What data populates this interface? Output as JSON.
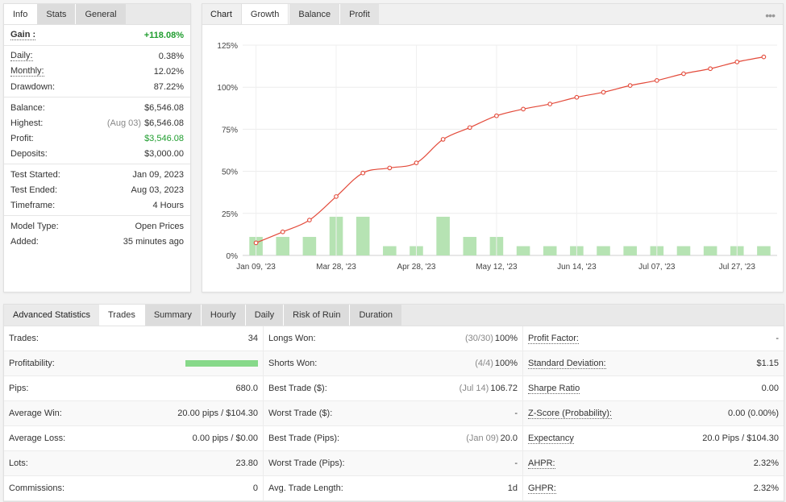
{
  "stats_tabs": [
    "Info",
    "Stats",
    "General"
  ],
  "stats": {
    "gain": {
      "label": "Gain :",
      "value": "+118.08%"
    },
    "daily": {
      "label": "Daily:",
      "value": "0.38%"
    },
    "monthly": {
      "label": "Monthly:",
      "value": "12.02%"
    },
    "drawdown": {
      "label": "Drawdown:",
      "value": "87.22%"
    },
    "balance": {
      "label": "Balance:",
      "value": "$6,546.08"
    },
    "highest": {
      "label": "Highest:",
      "sub": "(Aug 03)",
      "value": "$6,546.08"
    },
    "profit": {
      "label": "Profit:",
      "value": "$3,546.08"
    },
    "deposits": {
      "label": "Deposits:",
      "value": "$3,000.00"
    },
    "test_started": {
      "label": "Test Started:",
      "value": "Jan 09, 2023"
    },
    "test_ended": {
      "label": "Test Ended:",
      "value": "Aug 03, 2023"
    },
    "timeframe": {
      "label": "Timeframe:",
      "value": "4 Hours"
    },
    "model_type": {
      "label": "Model Type:",
      "value": "Open Prices"
    },
    "added": {
      "label": "Added:",
      "value": "35 minutes ago"
    }
  },
  "chart_tabs": [
    "Chart",
    "Growth",
    "Balance",
    "Profit"
  ],
  "menu_icon": "more-dots-icon",
  "colors": {
    "line": "#e34a3a",
    "bar": "#b6e3b3",
    "green": "#1f9d2e",
    "progress": "#87d98a"
  },
  "chart_data": {
    "type": "line+bar",
    "yticks": [
      "125%",
      "100%",
      "75%",
      "50%",
      "25%",
      "0%"
    ],
    "ylim": [
      0,
      125
    ],
    "xticks": [
      "Jan 09, '23",
      "Mar 28, '23",
      "Apr 28, '23",
      "May 12, '23",
      "Jun 14, '23",
      "Jul 07, '23",
      "Jul 27, '23"
    ],
    "line_values": [
      7.5,
      14,
      21,
      35,
      49,
      52,
      55,
      69,
      76,
      83,
      87,
      90,
      94,
      97,
      101,
      104,
      108,
      111,
      115,
      118
    ],
    "bar_values": [
      11,
      11,
      11,
      23,
      23,
      5.5,
      5.5,
      23,
      11,
      11,
      5.5,
      5.5,
      5.5,
      5.5,
      5.5,
      5.5,
      5.5,
      5.5,
      5.5,
      5.5
    ]
  },
  "adv_tabs": [
    "Advanced Statistics",
    "Trades",
    "Summary",
    "Hourly",
    "Daily",
    "Risk of Ruin",
    "Duration"
  ],
  "adv": {
    "col1": [
      {
        "label": "Trades:",
        "value": "34"
      },
      {
        "label": "Profitability:",
        "progress": 1.0
      },
      {
        "label": "Pips:",
        "value": "680.0"
      },
      {
        "label": "Average Win:",
        "value": "20.00 pips / $104.30"
      },
      {
        "label": "Average Loss:",
        "value": "0.00 pips / $0.00"
      },
      {
        "label": "Lots:",
        "value": "23.80"
      },
      {
        "label": "Commissions:",
        "value": "0"
      }
    ],
    "col2": [
      {
        "label": "Longs Won:",
        "sub": "(30/30)",
        "value": "100%"
      },
      {
        "label": "Shorts Won:",
        "sub": "(4/4)",
        "value": "100%"
      },
      {
        "label": "Best Trade ($):",
        "sub": "(Jul 14)",
        "value": "106.72"
      },
      {
        "label": "Worst Trade ($):",
        "value": "-"
      },
      {
        "label": "Best Trade (Pips):",
        "sub": "(Jan 09)",
        "value": "20.0"
      },
      {
        "label": "Worst Trade (Pips):",
        "value": "-"
      },
      {
        "label": "Avg. Trade Length:",
        "value": "1d"
      }
    ],
    "col3": [
      {
        "label": "Profit Factor:",
        "value": "-"
      },
      {
        "label": "Standard Deviation:",
        "value": "$1.15"
      },
      {
        "label": "Sharpe Ratio",
        "value": "0.00"
      },
      {
        "label": "Z-Score (Probability):",
        "value": "0.00 (0.00%)"
      },
      {
        "label": "Expectancy",
        "value": "20.0 Pips / $104.30"
      },
      {
        "label": "AHPR:",
        "value": "2.32%"
      },
      {
        "label": "GHPR:",
        "value": "2.32%"
      }
    ]
  }
}
